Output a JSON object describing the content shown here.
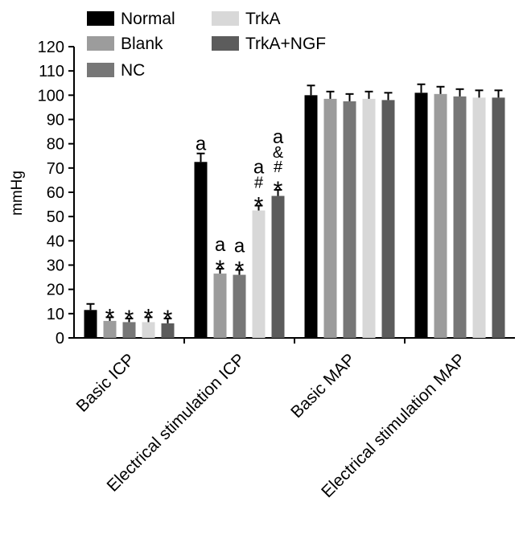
{
  "chart_data": {
    "type": "bar",
    "title": "",
    "xlabel": "",
    "ylabel": "mmHg",
    "ylim": [
      0,
      120
    ],
    "yticks": [
      0,
      10,
      20,
      30,
      40,
      50,
      60,
      70,
      80,
      90,
      100,
      110,
      120
    ],
    "categories": [
      "Basic ICP",
      "Electrical stimulation ICP",
      "Basic MAP",
      "Electrical stimulation MAP"
    ],
    "series": [
      {
        "name": "Normal",
        "color": "#000000",
        "values": [
          11.5,
          72.5,
          100.0,
          101.0
        ],
        "errors": [
          2.5,
          3.5,
          4.0,
          3.5
        ],
        "annotations": [
          "",
          "a",
          "",
          ""
        ]
      },
      {
        "name": "Blank",
        "color": "#9c9c9c",
        "values": [
          7.0,
          26.5,
          98.5,
          100.5
        ],
        "errors": [
          1.5,
          2.0,
          3.0,
          3.0
        ],
        "annotations": [
          "*",
          "a\n*",
          "",
          ""
        ]
      },
      {
        "name": "NC",
        "color": "#777777",
        "values": [
          6.5,
          26.0,
          97.5,
          99.5
        ],
        "errors": [
          1.5,
          2.0,
          3.0,
          3.0
        ],
        "annotations": [
          "*",
          "a\n*",
          "",
          ""
        ]
      },
      {
        "name": "TrkA",
        "color": "#d8d8d8",
        "values": [
          6.5,
          52.5,
          98.5,
          99.0
        ],
        "errors": [
          2.0,
          2.0,
          3.0,
          3.0
        ],
        "annotations": [
          "*",
          "a\n#\n*",
          "",
          ""
        ]
      },
      {
        "name": "TrkA+NGF",
        "color": "#5c5c5c",
        "values": [
          6.0,
          58.5,
          98.0,
          99.0
        ],
        "errors": [
          2.0,
          2.5,
          3.0,
          3.0
        ],
        "annotations": [
          "*",
          "a\n&\n#\n*",
          "",
          ""
        ]
      }
    ],
    "legend": {
      "position": "top-left",
      "columns": 2
    }
  }
}
